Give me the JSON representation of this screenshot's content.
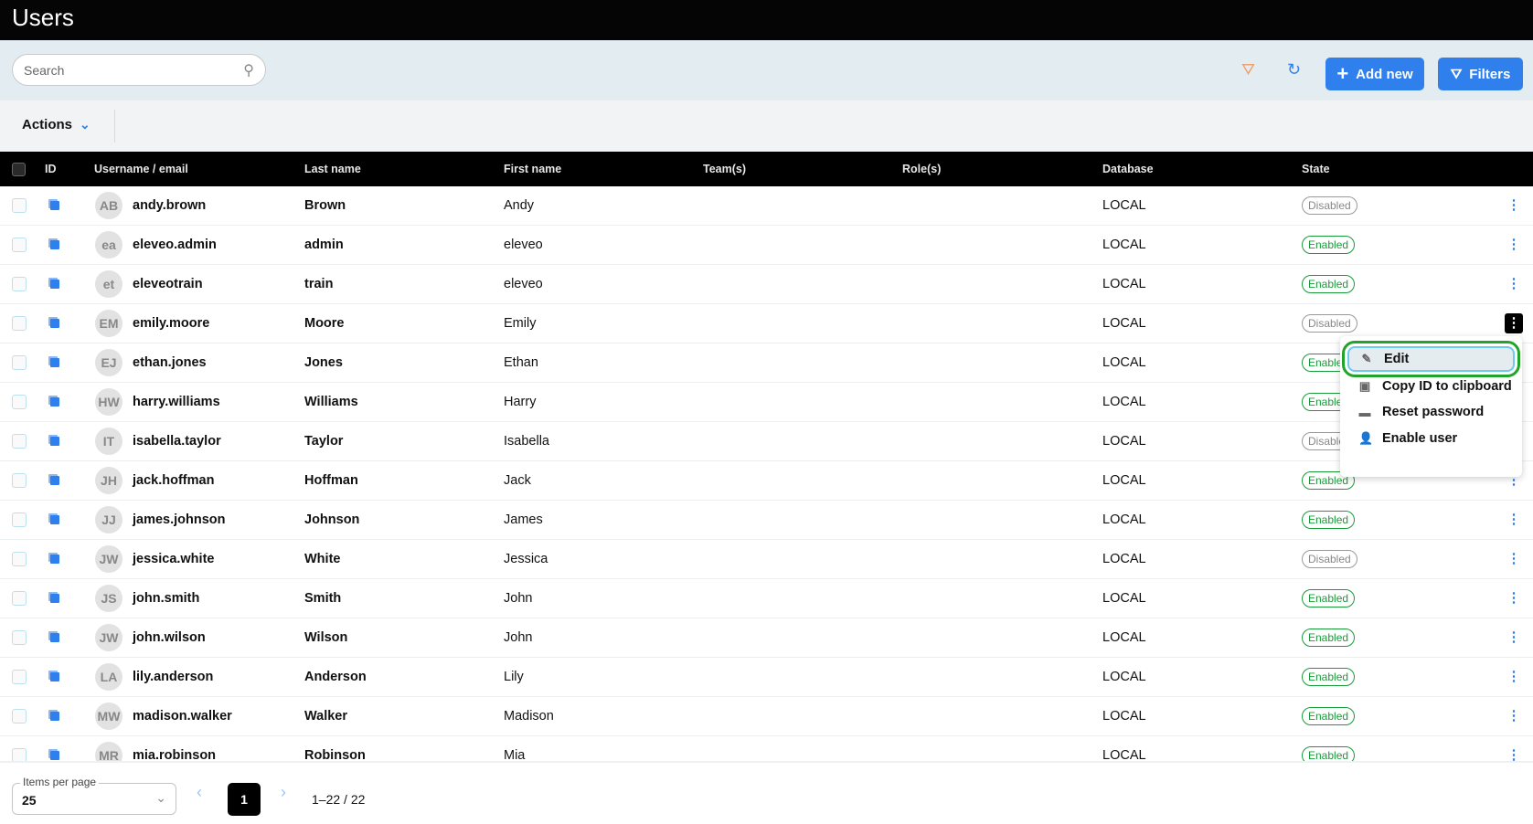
{
  "title": "Users",
  "search": {
    "placeholder": "Search"
  },
  "toolbar": {
    "add_new": "Add new",
    "filters": "Filters"
  },
  "actions": {
    "label": "Actions"
  },
  "columns": [
    "ID",
    "Username / email",
    "Last name",
    "First name",
    "Team(s)",
    "Role(s)",
    "Database",
    "State"
  ],
  "rows": [
    {
      "initials": "AB",
      "username": "andy.brown",
      "last": "Brown",
      "first": "Andy",
      "db": "LOCAL",
      "state": "Disabled"
    },
    {
      "initials": "ea",
      "username": "eleveo.admin",
      "last": "admin",
      "first": "eleveo",
      "db": "LOCAL",
      "state": "Enabled"
    },
    {
      "initials": "et",
      "username": "eleveotrain",
      "last": "train",
      "first": "eleveo",
      "db": "LOCAL",
      "state": "Enabled"
    },
    {
      "initials": "EM",
      "username": "emily.moore",
      "last": "Moore",
      "first": "Emily",
      "db": "LOCAL",
      "state": "Disabled"
    },
    {
      "initials": "EJ",
      "username": "ethan.jones",
      "last": "Jones",
      "first": "Ethan",
      "db": "LOCAL",
      "state": "Enabled"
    },
    {
      "initials": "HW",
      "username": "harry.williams",
      "last": "Williams",
      "first": "Harry",
      "db": "LOCAL",
      "state": "Enabled"
    },
    {
      "initials": "IT",
      "username": "isabella.taylor",
      "last": "Taylor",
      "first": "Isabella",
      "db": "LOCAL",
      "state": "Disabled"
    },
    {
      "initials": "JH",
      "username": "jack.hoffman",
      "last": "Hoffman",
      "first": "Jack",
      "db": "LOCAL",
      "state": "Enabled"
    },
    {
      "initials": "JJ",
      "username": "james.johnson",
      "last": "Johnson",
      "first": "James",
      "db": "LOCAL",
      "state": "Enabled"
    },
    {
      "initials": "JW",
      "username": "jessica.white",
      "last": "White",
      "first": "Jessica",
      "db": "LOCAL",
      "state": "Disabled"
    },
    {
      "initials": "JS",
      "username": "john.smith",
      "last": "Smith",
      "first": "John",
      "db": "LOCAL",
      "state": "Enabled"
    },
    {
      "initials": "JW",
      "username": "john.wilson",
      "last": "Wilson",
      "first": "John",
      "db": "LOCAL",
      "state": "Enabled"
    },
    {
      "initials": "LA",
      "username": "lily.anderson",
      "last": "Anderson",
      "first": "Lily",
      "db": "LOCAL",
      "state": "Enabled"
    },
    {
      "initials": "MW",
      "username": "madison.walker",
      "last": "Walker",
      "first": "Madison",
      "db": "LOCAL",
      "state": "Enabled"
    },
    {
      "initials": "MR",
      "username": "mia.robinson",
      "last": "Robinson",
      "first": "Mia",
      "db": "LOCAL",
      "state": "Enabled"
    }
  ],
  "context_menu": {
    "items": [
      "Edit",
      "Copy ID to clipboard",
      "Reset password",
      "Enable user"
    ],
    "icons": [
      "pencil-icon",
      "copy-icon",
      "password-icon",
      "user-icon"
    ]
  },
  "pagination": {
    "items_per_page_label": "Items per page",
    "items_per_page": "25",
    "page": "1",
    "range": "1–22 / 22"
  },
  "colors": {
    "accent": "#2f80ed",
    "enabled": "#1a9b3a",
    "highlight": "#22a32a"
  }
}
